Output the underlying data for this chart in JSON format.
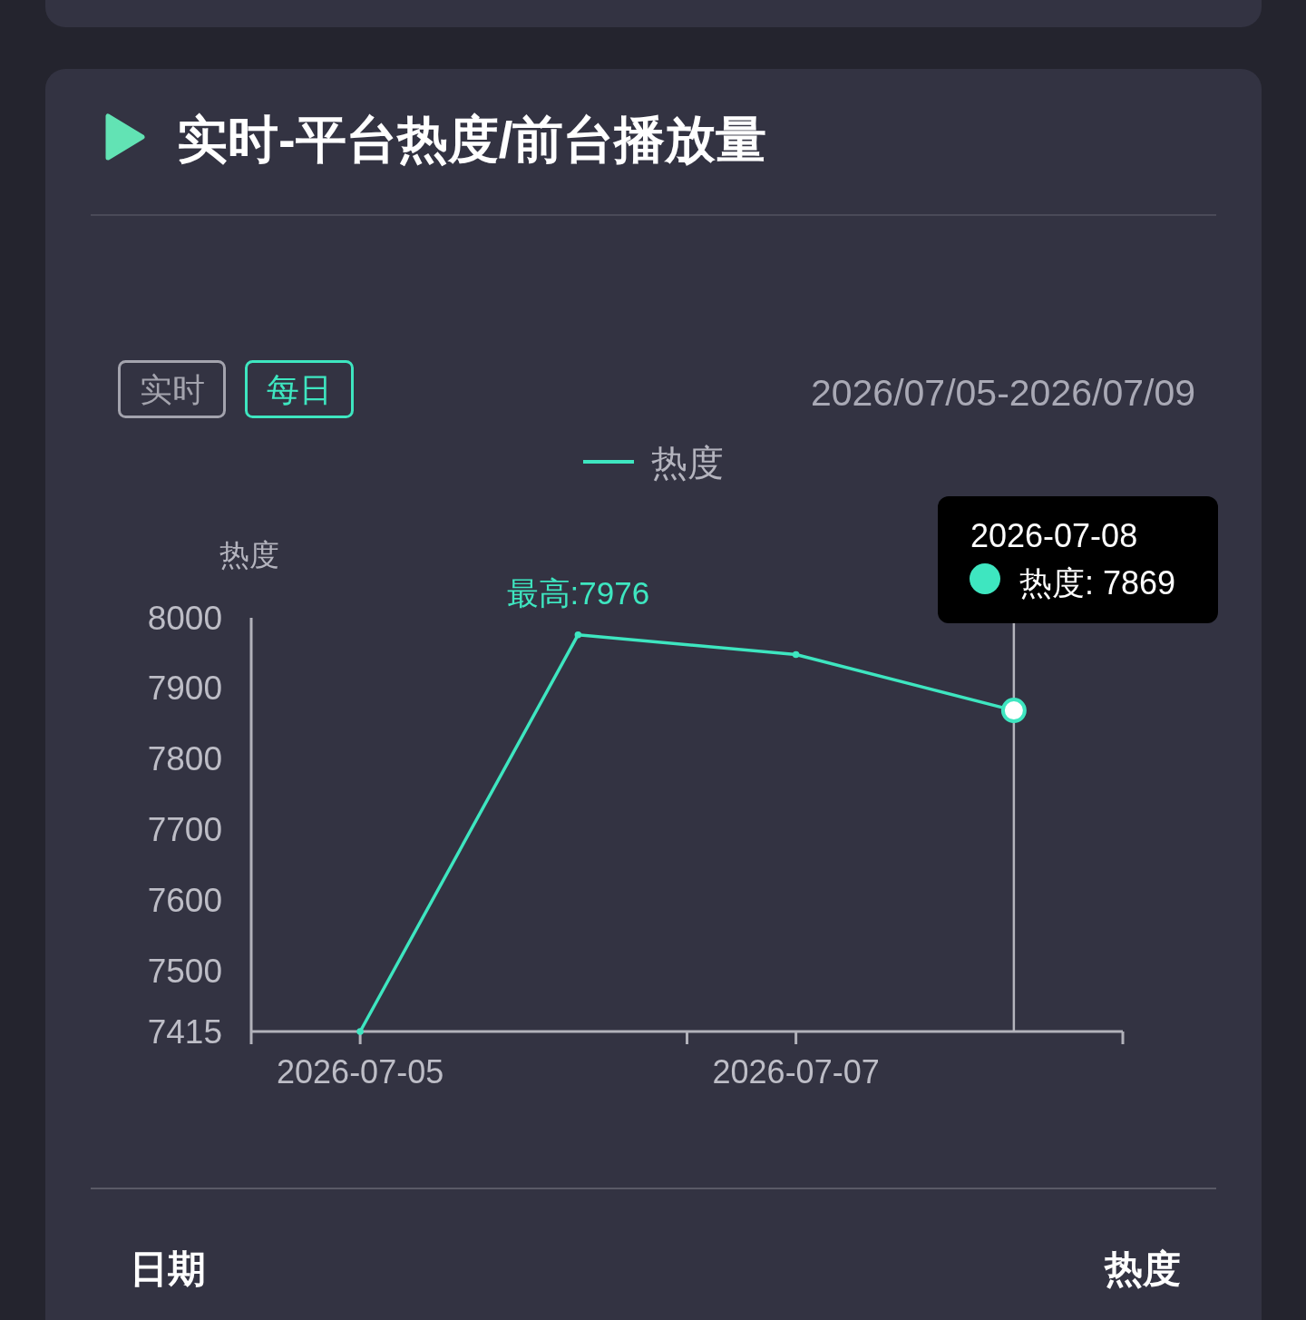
{
  "chart_data": {
    "type": "line",
    "title": "实时-平台热度/前台播放量",
    "subtitle": "2026/07/05-2026/07/09",
    "ylabel": "热度",
    "x": [
      "2026-07-05",
      "2026-07-06",
      "2026-07-07",
      "2026-07-08"
    ],
    "series": [
      {
        "name": "热度",
        "color": "#3ee6c0",
        "values": [
          7415,
          7976,
          7948,
          7869
        ]
      }
    ],
    "xlim": [
      "2026-07-04T12:00",
      "2026-07-08T12:00"
    ],
    "xticks": [
      {
        "value": "2026-07-04T12:00",
        "label": null
      },
      "2026-07-05",
      {
        "value": "2026-07-06T12:00",
        "label": null
      },
      "2026-07-07",
      {
        "value": "2026-07-08T12:00",
        "label": null
      }
    ],
    "ylim": [
      7415,
      8000
    ],
    "yticks": [
      7415,
      7500,
      7600,
      7700,
      7800,
      7900,
      8000
    ],
    "ref_lines": [
      {
        "axis": "x",
        "value": "2026-07-08",
        "color": "#b4b4bc"
      }
    ],
    "annotations": [
      "实时",
      "每日",
      {
        "text": "最高:7976",
        "x": "2026-07-06",
        "y": 7976
      },
      "2026-07-08\n热度: 7869",
      "日期",
      "热度"
    ],
    "legend": "top",
    "marker": "circle"
  }
}
